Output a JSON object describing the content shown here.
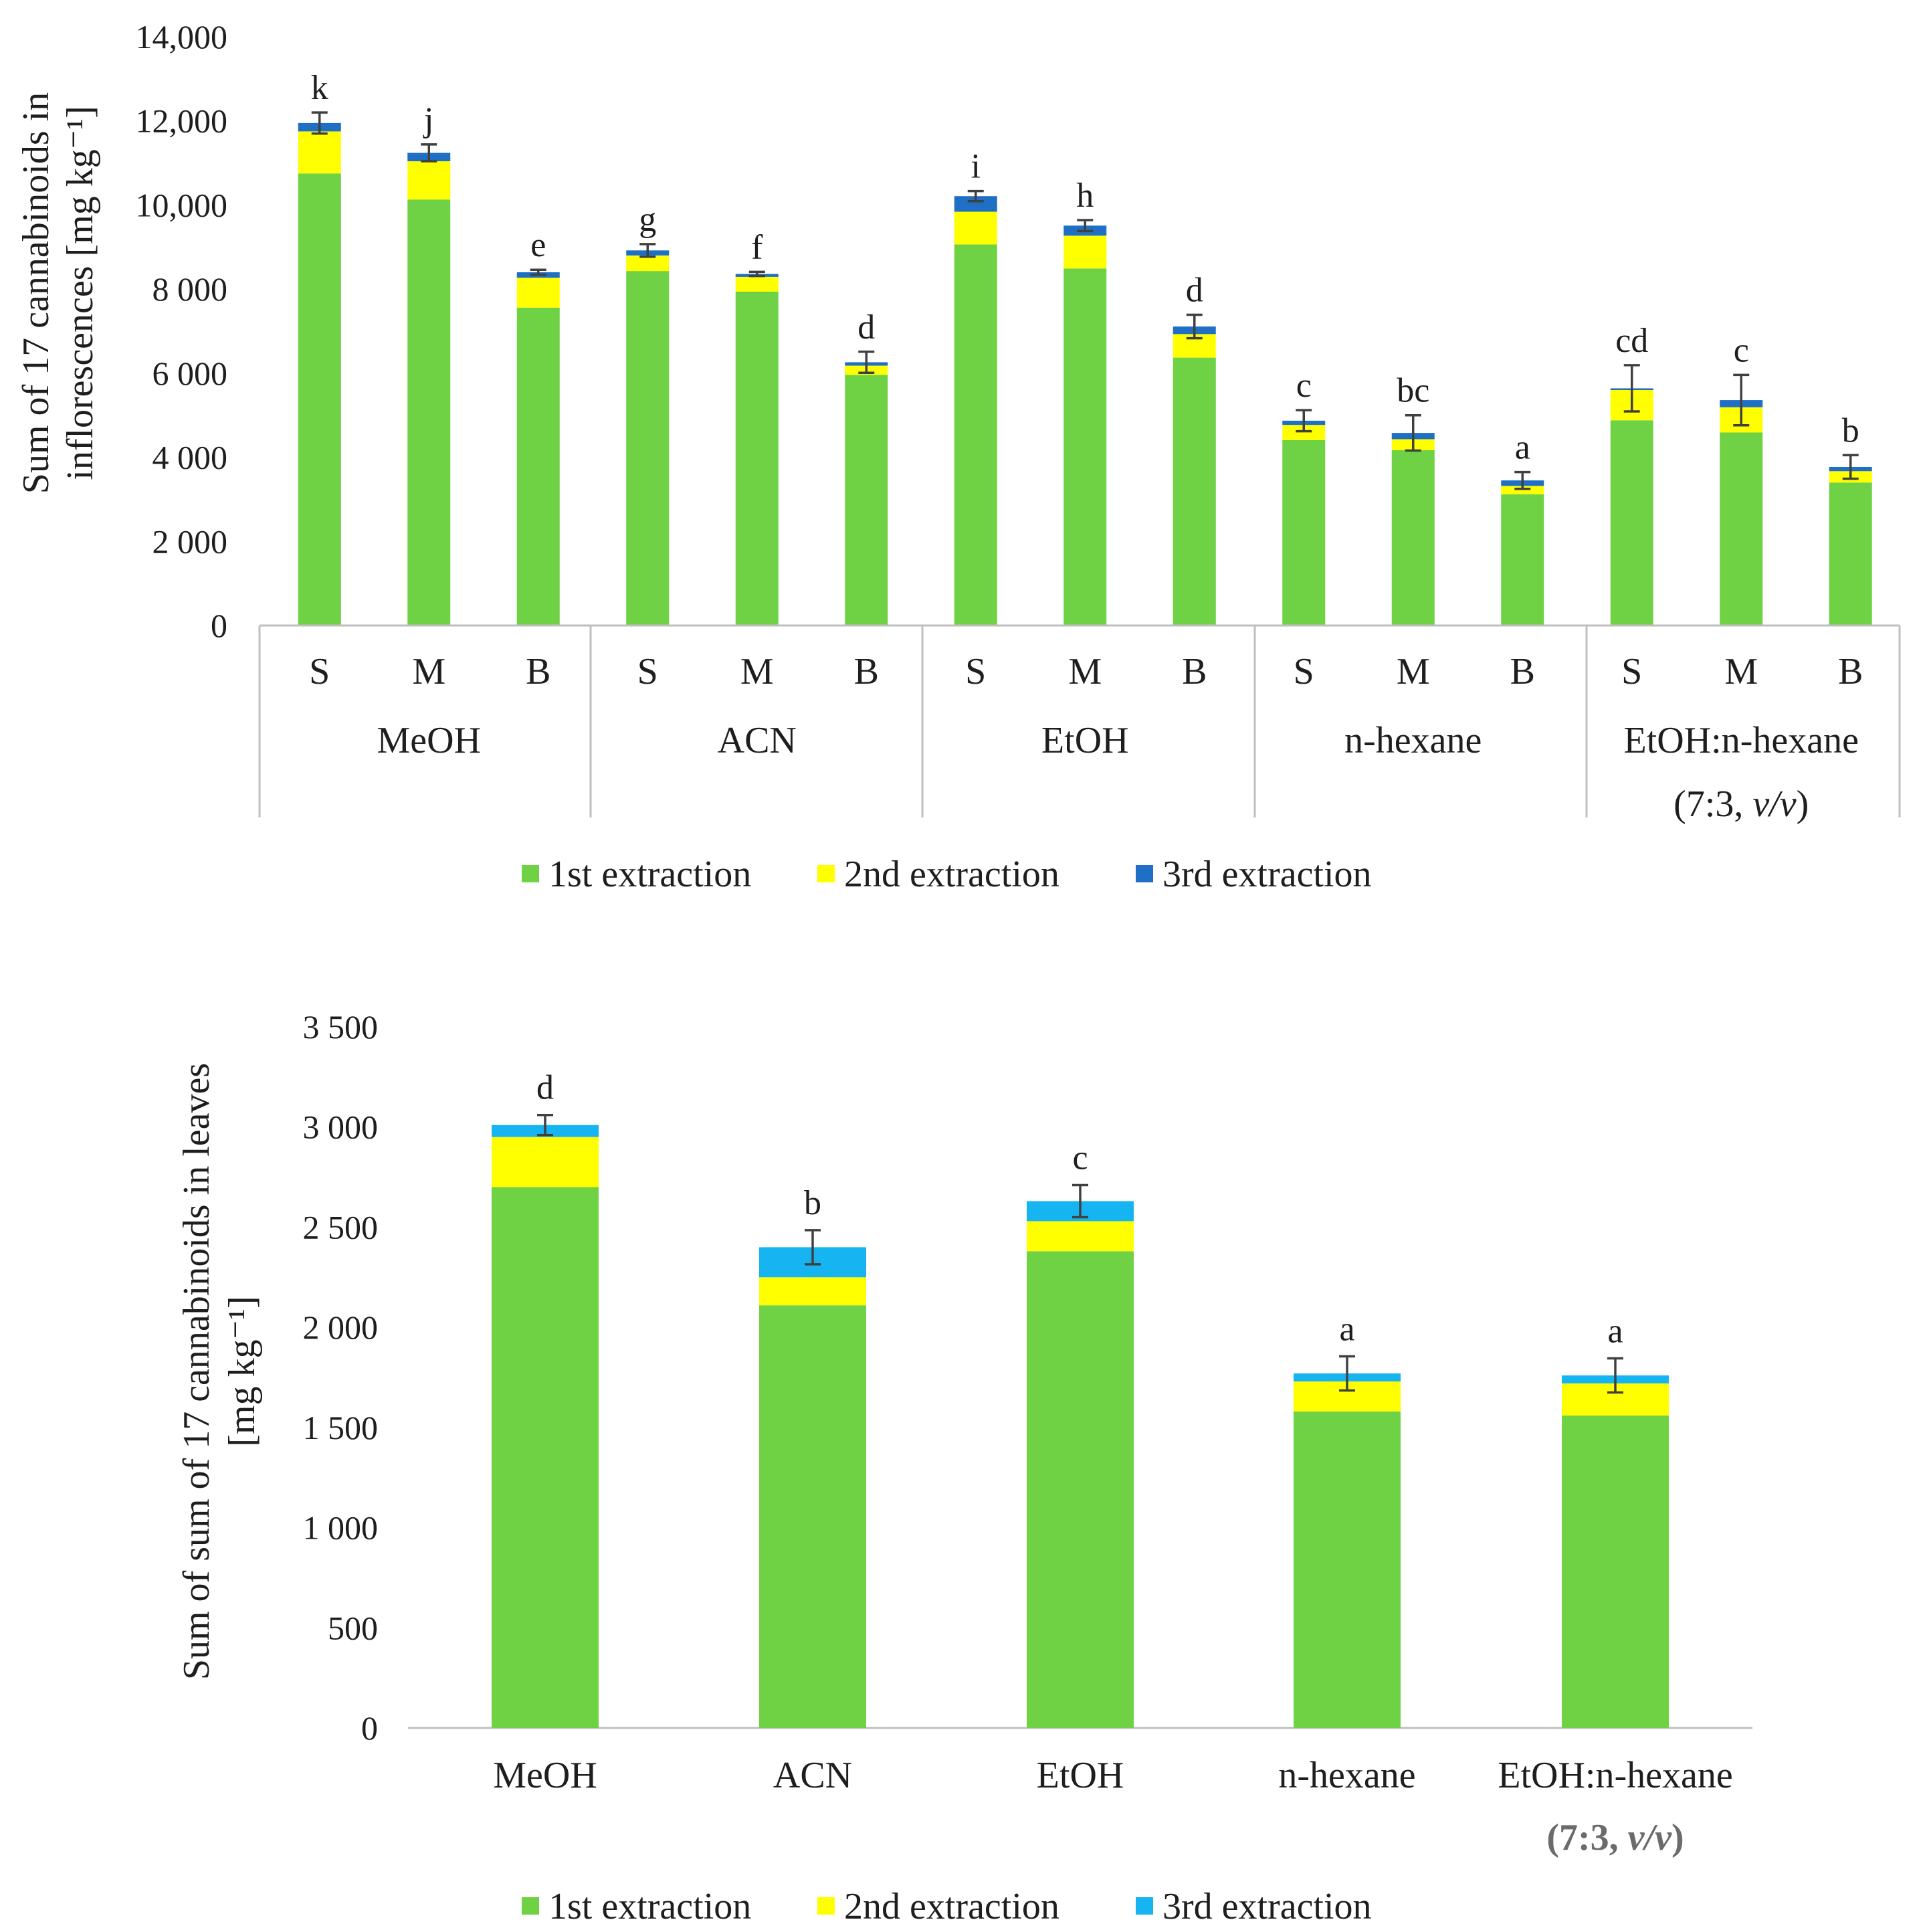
{
  "chart_data": [
    {
      "type": "bar",
      "stacked": true,
      "name": "inflorescences",
      "ylabel_line1": "Sum of 17 cannabinoids in",
      "ylabel_line2": "inflorescences [mg kg⁻¹]",
      "ylim": [
        0,
        14000
      ],
      "yticks": [
        "0",
        "2 000",
        "4 000",
        "6 000",
        "8 000",
        "10,000",
        "12,000",
        "14,000"
      ],
      "grid": false,
      "groups": [
        {
          "label": "MeOH",
          "sublabel": ""
        },
        {
          "label": "ACN",
          "sublabel": ""
        },
        {
          "label": "EtOH",
          "sublabel": ""
        },
        {
          "label": "n-hexane",
          "sublabel": ""
        },
        {
          "label": "EtOH:n-hexane",
          "sublabel": "(7:3, v/v)"
        }
      ],
      "categories": [
        "S",
        "M",
        "B",
        "S",
        "M",
        "B",
        "S",
        "M",
        "B",
        "S",
        "M",
        "B",
        "S",
        "M",
        "B"
      ],
      "series": [
        {
          "name": "1st extraction",
          "color": "#6fd144",
          "values": [
            10750,
            10130,
            7560,
            8430,
            7940,
            5960,
            9060,
            8490,
            6370,
            4410,
            4170,
            3120,
            4880,
            4590,
            3400
          ]
        },
        {
          "name": "2nd extraction",
          "color": "#ffff00",
          "values": [
            1000,
            910,
            710,
            370,
            350,
            220,
            780,
            780,
            560,
            360,
            260,
            200,
            720,
            600,
            270
          ]
        },
        {
          "name": "3rd extraction",
          "color": "#1f6fc5",
          "values": [
            200,
            200,
            130,
            120,
            70,
            80,
            370,
            240,
            180,
            100,
            150,
            130,
            40,
            170,
            100
          ]
        }
      ],
      "errors": [
        250,
        200,
        60,
        150,
        50,
        250,
        120,
        130,
        280,
        250,
        420,
        200,
        550,
        600,
        280
      ],
      "significance": [
        "k",
        "j",
        "e",
        "g",
        "f",
        "d",
        "i",
        "h",
        "d",
        "c",
        "bc",
        "a",
        "cd",
        "c",
        "b"
      ],
      "legend": "bottom"
    },
    {
      "type": "bar",
      "stacked": true,
      "name": "leaves",
      "ylabel_line1": "Sum of sum of  17 cannabinoids in leaves",
      "ylabel_line2": "[mg kg⁻¹]",
      "ylim": [
        0,
        3500
      ],
      "yticks": [
        "0",
        "500",
        "1 000",
        "1 500",
        "2 000",
        "2 500",
        "3 000",
        "3 500"
      ],
      "grid": false,
      "categories": [
        "MeOH",
        "ACN",
        "EtOH",
        "n-hexane",
        "EtOH:n-hexane"
      ],
      "sublabels": [
        "",
        "",
        "",
        "",
        "(7:3, v/v)"
      ],
      "series": [
        {
          "name": "1st extraction",
          "color": "#6fd144",
          "values": [
            2700,
            2110,
            2380,
            1580,
            1560
          ]
        },
        {
          "name": "2nd extraction",
          "color": "#ffff00",
          "values": [
            250,
            140,
            150,
            150,
            160
          ]
        },
        {
          "name": "3rd extraction",
          "color": "#17b4f2",
          "values": [
            60,
            150,
            100,
            40,
            40
          ]
        }
      ],
      "errors": [
        50,
        85,
        80,
        85,
        85
      ],
      "significance": [
        "d",
        "b",
        "c",
        "a",
        "a"
      ],
      "legend": "bottom"
    }
  ]
}
